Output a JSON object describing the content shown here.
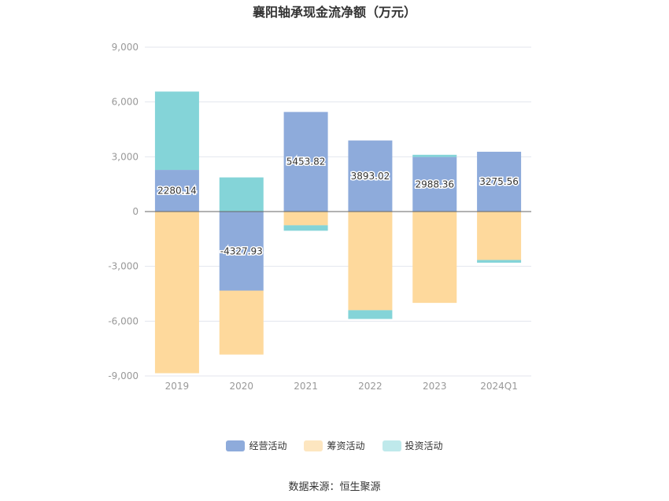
{
  "title": "襄阳轴承现金流净额（万元）",
  "source": "数据来源：恒生聚源",
  "colors": {
    "operating": "#8eabdb",
    "financing": "#fed99c",
    "investing": "#84d4d8"
  },
  "chart_data": {
    "type": "bar",
    "stacked": true,
    "categories": [
      "2019",
      "2020",
      "2021",
      "2022",
      "2023",
      "2024Q1"
    ],
    "yticks": [
      "9,000",
      "6,000",
      "3,000",
      "0",
      "-3,000",
      "-6,000",
      "-9,000"
    ],
    "ylim": [
      -9000,
      9000
    ],
    "grid": true,
    "legend_position": "bottom",
    "series": [
      {
        "name": "经营活动",
        "values": [
          2280.14,
          -4327.93,
          5453.82,
          3893.02,
          2988.36,
          3275.56
        ],
        "labels": [
          "2280.14",
          "-4327.93",
          "5453.82",
          "3893.02",
          "2988.36",
          "3275.56"
        ]
      },
      {
        "name": "筹资活动",
        "values": [
          -8850,
          -3500,
          -750,
          -5400,
          -5000,
          -2650
        ]
      },
      {
        "name": "投资活动",
        "values": [
          4290,
          1870,
          -300,
          -480,
          120,
          -150
        ]
      }
    ]
  }
}
